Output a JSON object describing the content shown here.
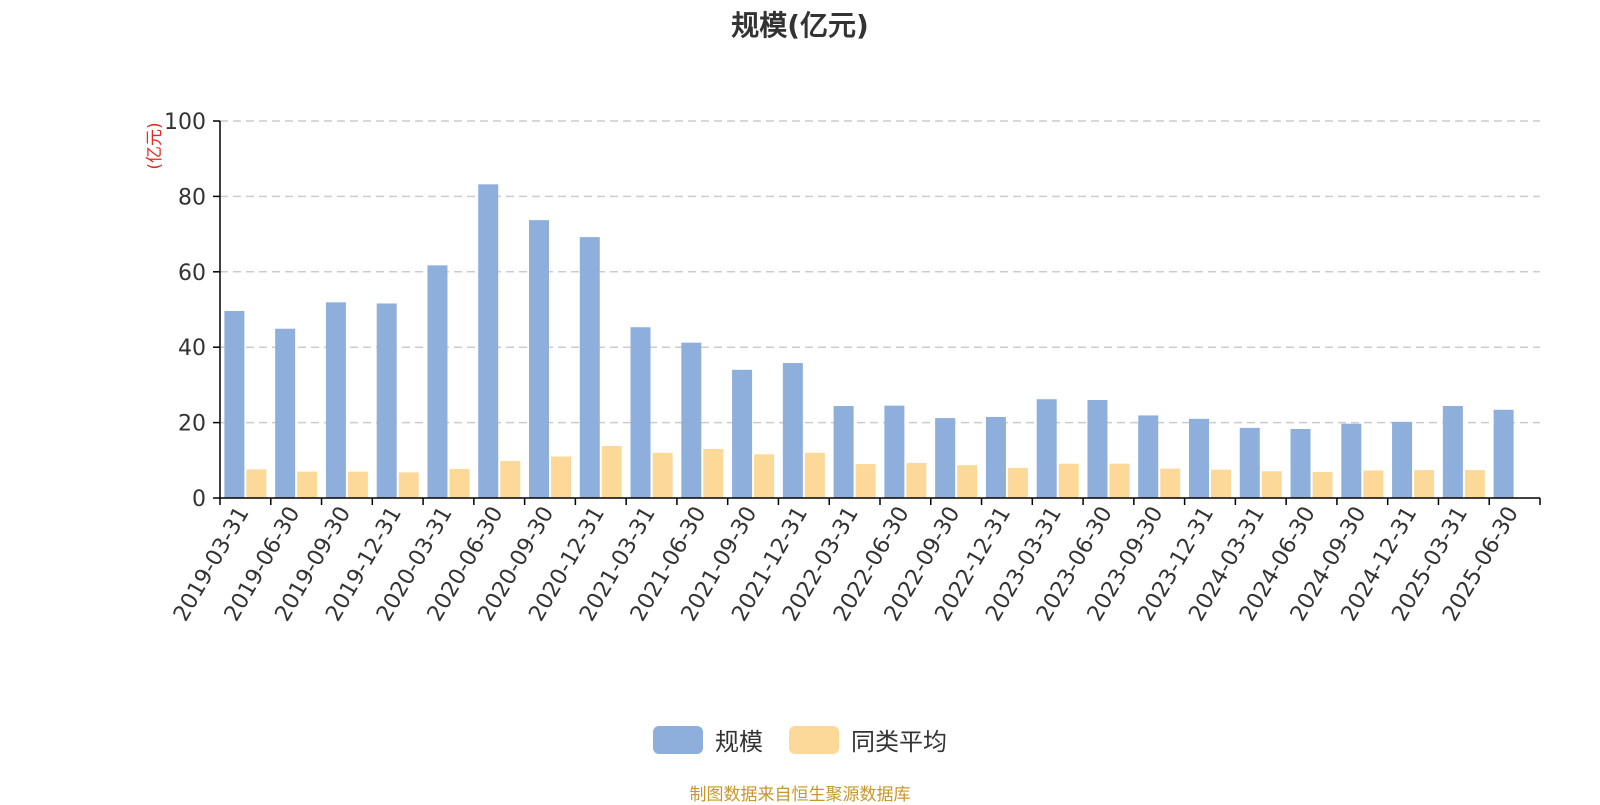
{
  "colors": {
    "series_1": "#8eaedb",
    "series_2": "#fdd999",
    "unit_label": "#e8251e",
    "source_note": "#c8962a",
    "grid": "#cccccc",
    "axis": "#000000",
    "text": "#333333"
  },
  "legend": {
    "items": [
      {
        "label": "规模"
      },
      {
        "label": "同类平均"
      }
    ]
  },
  "source_note": "制图数据来自恒生聚源数据库",
  "chart_data": {
    "type": "bar",
    "title": "规模(亿元)",
    "ylabel": "(亿元)",
    "xlabel": "",
    "ylim": [
      0,
      100
    ],
    "yticks": [
      0,
      20,
      40,
      60,
      80,
      100
    ],
    "grid": true,
    "legend_position": "bottom",
    "categories": [
      "2019-03-31",
      "2019-06-30",
      "2019-09-30",
      "2019-12-31",
      "2020-03-31",
      "2020-06-30",
      "2020-09-30",
      "2020-12-31",
      "2021-03-31",
      "2021-06-30",
      "2021-09-30",
      "2021-12-31",
      "2022-03-31",
      "2022-06-30",
      "2022-09-30",
      "2022-12-31",
      "2023-03-31",
      "2023-06-30",
      "2023-09-30",
      "2023-12-31",
      "2024-03-31",
      "2024-06-30",
      "2024-09-30",
      "2024-12-31",
      "2025-03-31",
      "2025-06-30"
    ],
    "series": [
      {
        "name": "规模",
        "values": [
          49.6,
          44.9,
          51.9,
          51.6,
          61.7,
          83.2,
          73.7,
          69.2,
          45.3,
          41.2,
          34.0,
          35.8,
          24.4,
          24.5,
          21.2,
          21.5,
          26.2,
          26.0,
          21.9,
          21.0,
          18.6,
          18.3,
          19.7,
          20.2,
          24.4,
          23.4
        ]
      },
      {
        "name": "同类平均",
        "values": [
          7.6,
          7.0,
          7.0,
          6.8,
          7.7,
          9.8,
          11.0,
          13.8,
          12.0,
          13.0,
          11.6,
          12.0,
          9.0,
          9.3,
          8.7,
          8.0,
          9.1,
          9.1,
          7.8,
          7.5,
          7.1,
          6.9,
          7.3,
          7.4,
          7.4,
          null
        ]
      }
    ]
  }
}
